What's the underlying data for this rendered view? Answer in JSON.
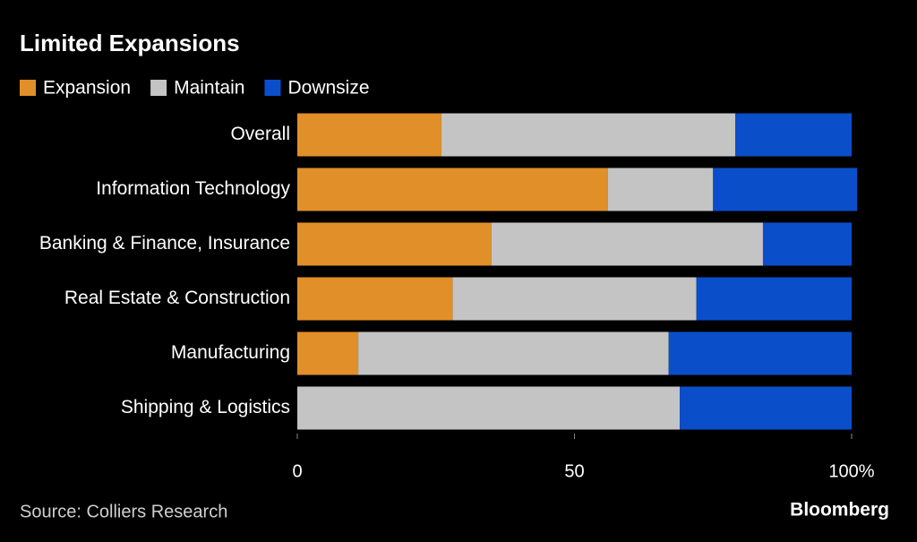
{
  "chart_data": {
    "type": "stacked-bar-horizontal",
    "title": "Limited Expansions",
    "categories": [
      "Overall",
      "Information Technology",
      "Banking & Finance, Insurance",
      "Real Estate & Construction",
      "Manufacturing",
      "Shipping & Logistics"
    ],
    "series": [
      {
        "name": "Expansion",
        "color": "#e08f29",
        "values": [
          26,
          56,
          35,
          28,
          11,
          0
        ]
      },
      {
        "name": "Maintain",
        "color": "#c4c4c4",
        "values": [
          53,
          19,
          49,
          44,
          56,
          69
        ]
      },
      {
        "name": "Downsize",
        "color": "#0a4fc9",
        "values": [
          21,
          26,
          16,
          28,
          33,
          31
        ]
      }
    ],
    "xlim": [
      0,
      100
    ],
    "xticks": [
      0,
      50,
      {
        "value": 100,
        "label": "100%"
      }
    ],
    "source": "Source: Colliers Research",
    "brand": "Bloomberg"
  }
}
